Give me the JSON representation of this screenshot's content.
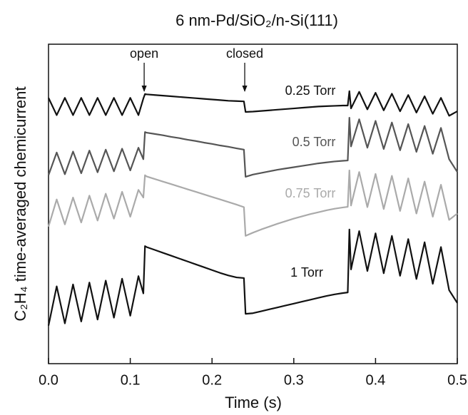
{
  "chart_data": {
    "type": "line",
    "title": "6 nm-Pd/SiO₂/n-Si(111)",
    "x_label": "Time (s)",
    "y_label": "C₂H₄ time-averaged chemicurrent",
    "x": [
      0,
      0.01,
      0.02,
      0.03,
      0.04,
      0.05,
      0.06,
      0.07,
      0.08,
      0.09,
      0.1,
      0.11,
      0.116,
      0.118,
      0.12,
      0.13,
      0.14,
      0.15,
      0.16,
      0.17,
      0.18,
      0.19,
      0.2,
      0.21,
      0.22,
      0.23,
      0.239,
      0.241,
      0.25,
      0.26,
      0.27,
      0.28,
      0.29,
      0.3,
      0.31,
      0.32,
      0.33,
      0.34,
      0.35,
      0.36,
      0.366,
      0.368,
      0.37,
      0.38,
      0.39,
      0.4,
      0.41,
      0.42,
      0.43,
      0.44,
      0.45,
      0.46,
      0.47,
      0.48,
      0.49,
      0.5
    ],
    "series": [
      {
        "name": "0.25 Torr",
        "color": "#111111",
        "values": [
          83.2,
          77.8,
          83.2,
          77.8,
          83.2,
          77.8,
          83.2,
          77.8,
          83.2,
          77.8,
          83.2,
          77.8,
          83.0,
          84.4,
          84.3,
          84.1,
          83.9,
          83.7,
          83.5,
          83.3,
          83.1,
          82.9,
          82.7,
          82.5,
          82.3,
          82.2,
          82.1,
          78.8,
          78.9,
          79.1,
          79.3,
          79.5,
          79.7,
          79.9,
          80.1,
          80.3,
          80.5,
          80.6,
          80.7,
          80.8,
          80.8,
          85.3,
          79.9,
          85.1,
          79.6,
          84.8,
          79.3,
          84.5,
          79.0,
          84.1,
          78.6,
          83.7,
          78.2,
          83.2,
          77.6,
          79.0
        ]
      },
      {
        "name": "0.5 Torr",
        "color": "#555555",
        "values": [
          59.0,
          66.1,
          59.3,
          66.4,
          59.6,
          66.7,
          59.9,
          67.0,
          60.2,
          67.3,
          60.5,
          67.6,
          64.0,
          72.5,
          72.3,
          71.9,
          71.5,
          71.0,
          70.6,
          70.1,
          69.7,
          69.2,
          68.8,
          68.3,
          67.9,
          67.4,
          67.0,
          58.5,
          59.2,
          59.7,
          60.2,
          60.7,
          61.1,
          61.5,
          61.9,
          62.3,
          62.7,
          63.0,
          63.3,
          63.5,
          63.6,
          77.0,
          68.0,
          76.5,
          67.6,
          76.0,
          67.2,
          75.5,
          66.8,
          75.0,
          66.3,
          74.4,
          65.7,
          73.8,
          64.0,
          60.0
        ]
      },
      {
        "name": "0.75 Torr",
        "color": "#aaaaaa",
        "values": [
          42.9,
          51.4,
          43.6,
          52.0,
          44.2,
          52.6,
          44.8,
          53.2,
          45.4,
          53.8,
          46.0,
          54.4,
          52.0,
          59.0,
          58.6,
          57.8,
          57.0,
          56.2,
          55.4,
          54.6,
          53.8,
          53.0,
          52.2,
          51.4,
          50.6,
          49.8,
          49.0,
          40.0,
          41.0,
          42.0,
          42.9,
          43.8,
          44.6,
          45.4,
          46.1,
          46.8,
          47.4,
          48.0,
          48.5,
          48.9,
          49.1,
          60.5,
          49.5,
          60.0,
          49.0,
          59.4,
          48.4,
          58.8,
          47.8,
          58.0,
          47.0,
          57.0,
          46.0,
          56.0,
          45.0,
          47.0
        ]
      },
      {
        "name": "1 Torr",
        "color": "#111111",
        "values": [
          11.9,
          24.2,
          12.6,
          24.8,
          13.2,
          25.4,
          13.8,
          26.0,
          14.4,
          26.6,
          15.0,
          27.4,
          22.0,
          36.8,
          36.5,
          35.6,
          34.7,
          33.8,
          32.9,
          32.0,
          31.1,
          30.2,
          29.3,
          28.4,
          27.6,
          27.0,
          26.8,
          15.6,
          15.8,
          16.4,
          17.0,
          17.6,
          18.2,
          18.8,
          19.4,
          20.0,
          20.6,
          21.2,
          21.7,
          22.1,
          22.3,
          42.0,
          29.5,
          41.5,
          29.0,
          40.8,
          28.3,
          40.0,
          27.5,
          39.0,
          26.5,
          38.0,
          25.0,
          36.5,
          23.0,
          19.0
        ]
      }
    ],
    "annotations": [
      {
        "text": "open",
        "x": 0.117
      },
      {
        "text": "closed",
        "x": 0.24
      }
    ],
    "xlim": [
      0,
      0.5
    ],
    "xticks": [
      {
        "value": 0,
        "label": "0.0"
      },
      0.1,
      0.2,
      0.3,
      0.4,
      0.5
    ],
    "ylim": [
      0,
      100
    ],
    "grid": false
  }
}
